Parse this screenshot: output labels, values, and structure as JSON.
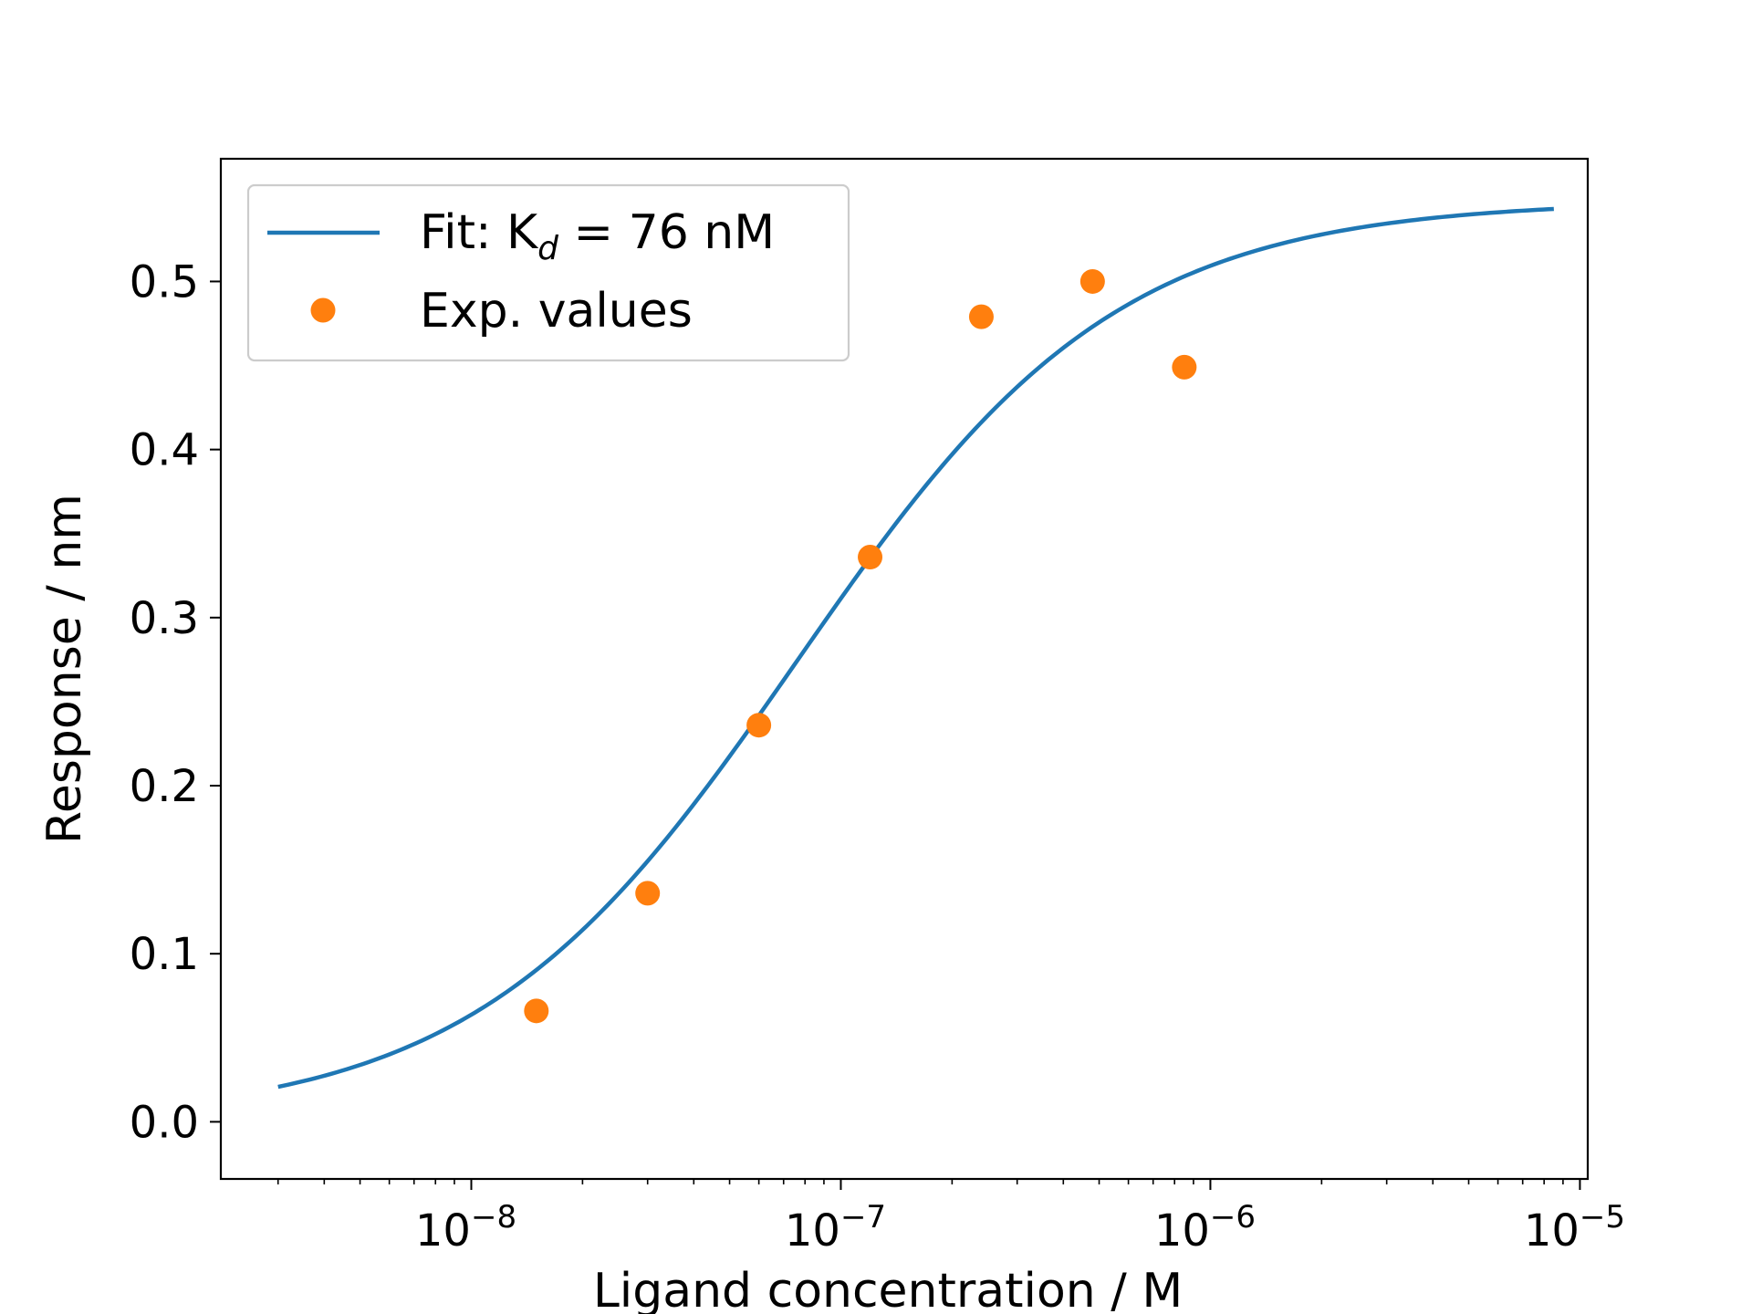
{
  "chart_data": {
    "type": "scatter",
    "xlabel": "Ligand concentration / M",
    "ylabel": "Response / nm",
    "xscale": "log",
    "xlim": [
      2.1e-09,
      1.05e-05
    ],
    "ylim": [
      -0.034,
      0.573
    ],
    "x_major_ticks": [
      1e-08,
      1e-07,
      1e-06,
      1e-05
    ],
    "x_tick_labels": [
      {
        "base": "10",
        "exp": "−8"
      },
      {
        "base": "10",
        "exp": "−7"
      },
      {
        "base": "10",
        "exp": "−6"
      },
      {
        "base": "10",
        "exp": "−5"
      }
    ],
    "y_ticks": [
      0.0,
      0.1,
      0.2,
      0.3,
      0.4,
      0.5
    ],
    "y_tick_labels": [
      "0.0",
      "0.1",
      "0.2",
      "0.3",
      "0.4",
      "0.5"
    ],
    "grid": false,
    "legend_position": "upper-left",
    "series": [
      {
        "kind": "line",
        "legend_label": {
          "prefix": "Fit: K",
          "subscript": "d",
          "suffix": " =  76 nM"
        },
        "color": "#1f77b4",
        "model": {
          "Kd": 7.6e-08,
          "Rmax": 0.548,
          "x_from": 3e-09,
          "x_to": 8.5e-06
        }
      },
      {
        "kind": "scatter",
        "legend_label": "Exp. values",
        "color": "#ff7f0e",
        "x": [
          1.5e-08,
          3e-08,
          6e-08,
          1.2e-07,
          2.4e-07,
          4.8e-07,
          8.5e-07
        ],
        "y": [
          0.066,
          0.136,
          0.236,
          0.336,
          0.479,
          0.5,
          0.449
        ]
      }
    ]
  }
}
